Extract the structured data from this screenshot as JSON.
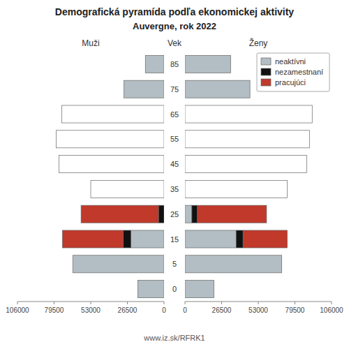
{
  "chart_data": {
    "type": "bar",
    "orientation": "horizontal",
    "stacked": true,
    "title": "Demografická pyramída podľa ekonomickej aktivity",
    "subtitle": "Auvergne, rok 2022",
    "category_label": "Vek",
    "annotations": [
      "www.iz.sk/RFRK1"
    ],
    "categories": [
      "85",
      "75",
      "65",
      "55",
      "45",
      "35",
      "25",
      "15",
      "5",
      "0"
    ],
    "xlim": [
      0,
      106000
    ],
    "xticks": [
      0,
      26500,
      53000,
      79500,
      106000
    ],
    "grid": false,
    "legend": "upper right",
    "panels": [
      {
        "label": "Muži",
        "series": [
          {
            "name": "neaktívni",
            "color": "#b2bec3",
            "values": [
              13500,
              29000,
              0,
              0,
              0,
              0,
              0,
              24000,
              66000,
              19000
            ]
          },
          {
            "name": "nezamestnaní",
            "color": "#111111",
            "values": [
              0,
              0,
              0,
              0,
              0,
              0,
              4000,
              5500,
              0,
              0
            ]
          },
          {
            "name": "pracujúci",
            "color": "#c0392b",
            "values": [
              0,
              0,
              0,
              0,
              0,
              0,
              56000,
              44000,
              0,
              0
            ]
          },
          {
            "color": "#ffffff",
            "values": [
              0,
              0,
              74000,
              78000,
              76000,
              53000,
              0,
              0,
              0,
              0
            ]
          }
        ]
      },
      {
        "label": "Ženy",
        "series": [
          {
            "name": "neaktívni",
            "color": "#b2bec3",
            "values": [
              33000,
              47000,
              0,
              0,
              0,
              0,
              5000,
              37000,
              70000,
              21000
            ]
          },
          {
            "name": "nezamestnaní",
            "color": "#111111",
            "values": [
              0,
              0,
              0,
              0,
              0,
              0,
              4000,
              5000,
              0,
              0
            ]
          },
          {
            "name": "pracujúci",
            "color": "#c0392b",
            "values": [
              0,
              0,
              0,
              0,
              0,
              0,
              50000,
              32000,
              0,
              0
            ]
          },
          {
            "color": "#ffffff",
            "values": [
              0,
              0,
              92000,
              90000,
              88000,
              74000,
              0,
              0,
              0,
              0
            ]
          }
        ]
      }
    ]
  }
}
